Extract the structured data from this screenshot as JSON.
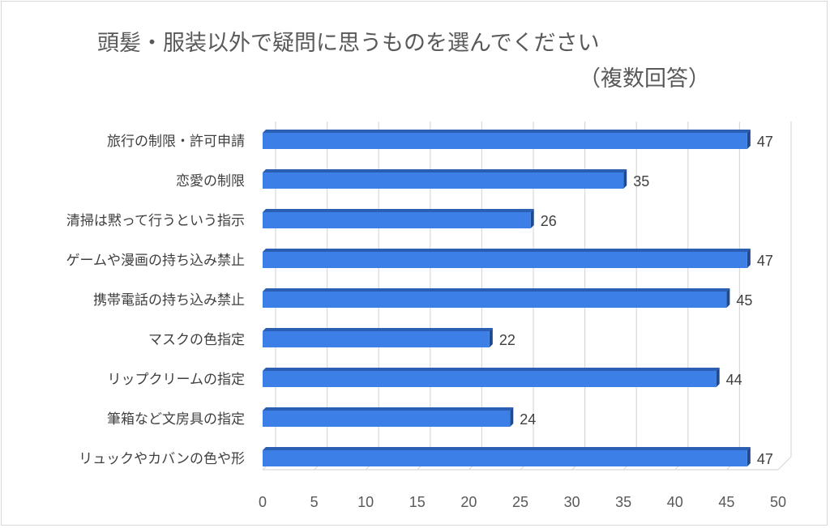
{
  "chart_data": {
    "type": "bar",
    "orientation": "horizontal",
    "style": "3d",
    "title": "頭髪・服装以外で疑問に思うものを選んでください",
    "subtitle": "（複数回答）",
    "categories": [
      "旅行の制限・許可申請",
      "恋愛の制限",
      "清掃は黙って行うという指示",
      "ゲームや漫画の持ち込み禁止",
      "携帯電話の持ち込み禁止",
      "マスクの色指定",
      "リップクリームの指定",
      "筆箱など文房具の指定",
      "リュックやカバンの色や形"
    ],
    "values": [
      47,
      35,
      26,
      47,
      45,
      22,
      44,
      24,
      47
    ],
    "xlim": [
      0,
      50
    ],
    "x_ticks": [
      0,
      5,
      10,
      15,
      20,
      25,
      30,
      35,
      40,
      45,
      50
    ],
    "grid": true,
    "legend": "none",
    "data_labels": true,
    "colors": {
      "bar_front": "#3c7fe6",
      "bar_top": "#2a5fb3",
      "bar_side": "#1f4a8f",
      "gridline": "#d9d9d9"
    }
  }
}
